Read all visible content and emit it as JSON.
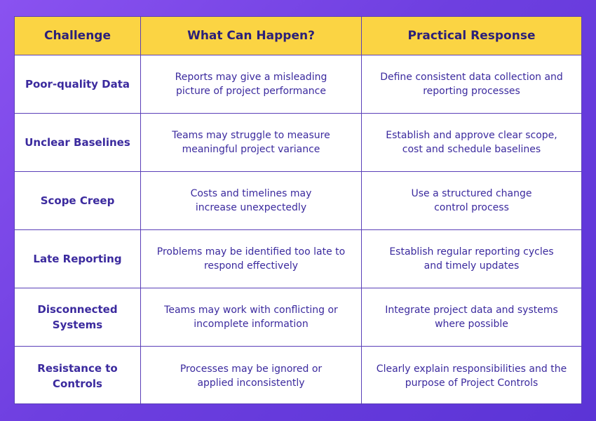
{
  "header": {
    "challenge": "Challenge",
    "what_can_happen": "What Can Happen?",
    "practical_response": "Practical Response"
  },
  "rows": [
    {
      "challenge": "Poor-quality Data",
      "what_can_happen": "Reports may give a misleading picture of project performance",
      "practical_response": "Define consistent data collection and reporting processes"
    },
    {
      "challenge": "Unclear Baselines",
      "what_can_happen": "Teams may struggle to measure meaningful project variance",
      "practical_response": "Establish and approve clear scope, cost and schedule baselines"
    },
    {
      "challenge": "Scope Creep",
      "what_can_happen": "Costs and timelines may increase unexpectedly",
      "practical_response": "Use a structured change control process"
    },
    {
      "challenge": "Late Reporting",
      "what_can_happen": "Problems may be identified too late to respond effectively",
      "practical_response": "Establish regular reporting cycles and timely updates"
    },
    {
      "challenge": "Disconnected Systems",
      "what_can_happen": "Teams may work with conflicting or incomplete information",
      "practical_response": "Integrate project data and systems where possible"
    },
    {
      "challenge": "Resistance to Controls",
      "what_can_happen": "Processes may be ignored or applied inconsistently",
      "practical_response": "Clearly explain responsibilities and the purpose of Project Controls"
    }
  ],
  "colors": {
    "header_bg": "#fbd443",
    "text": "#3b2a9e",
    "border": "#5a3fb8",
    "background": "#6e3fe0"
  }
}
